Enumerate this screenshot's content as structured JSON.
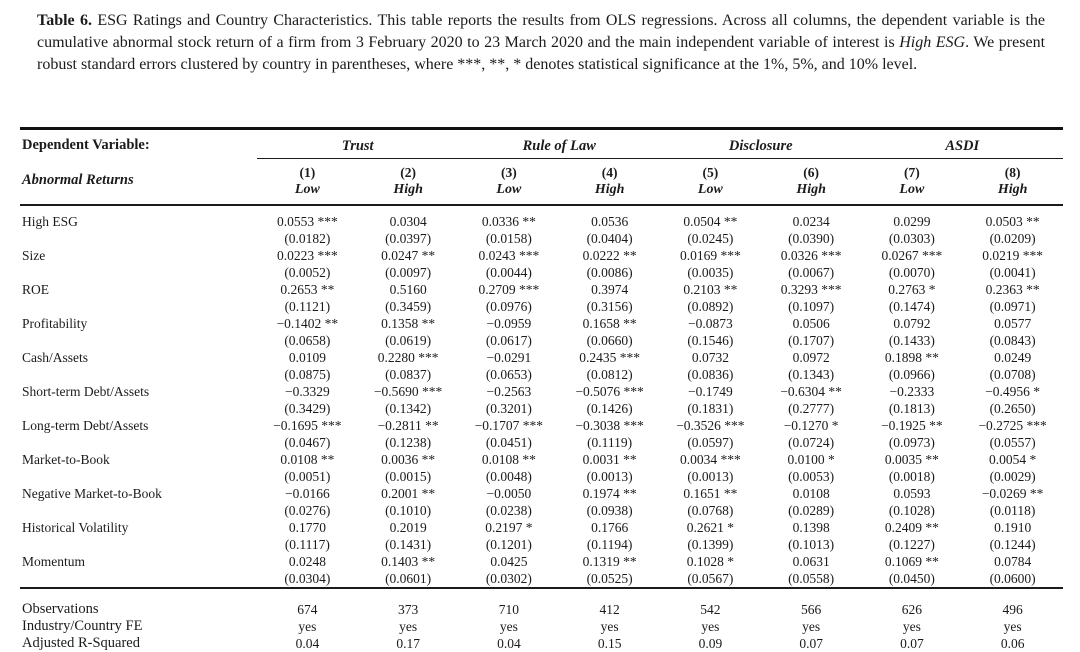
{
  "caption": {
    "label": "Table 6.",
    "text_before_italic": " ESG Ratings and Country Characteristics. This table reports the results from OLS regressions. Across all columns, the dependent variable is the cumulative abnormal stock return of a firm from 3 February 2020 to 23 March 2020 and the main independent variable of interest is ",
    "italic_phrase": "High ESG",
    "text_after_italic": ". We present robust standard errors clustered by country in parentheses, where ***, **, * denotes statistical significance at the 1%, 5%, and 10% level."
  },
  "table": {
    "header": {
      "dependent_variable_label": "Dependent Variable:",
      "abnormal_returns_label": "Abnormal Returns",
      "groups": [
        {
          "label": "Trust",
          "span": 2
        },
        {
          "label": "Rule of Law",
          "span": 2
        },
        {
          "label": "Disclosure",
          "span": 2
        },
        {
          "label": "ASDI",
          "span": 2
        }
      ],
      "column_numbers": [
        "(1)",
        "(2)",
        "(3)",
        "(4)",
        "(5)",
        "(6)",
        "(7)",
        "(8)"
      ],
      "column_types": [
        "Low",
        "High",
        "Low",
        "High",
        "Low",
        "High",
        "Low",
        "High"
      ]
    },
    "rows": [
      {
        "variable": "High ESG",
        "coef": [
          "0.0553 ***",
          "0.0304",
          "0.0336 **",
          "0.0536",
          "0.0504 **",
          "0.0234",
          "0.0299",
          "0.0503 **"
        ],
        "se": [
          "(0.0182)",
          "(0.0397)",
          "(0.0158)",
          "(0.0404)",
          "(0.0245)",
          "(0.0390)",
          "(0.0303)",
          "(0.0209)"
        ]
      },
      {
        "variable": "Size",
        "coef": [
          "0.0223 ***",
          "0.0247 **",
          "0.0243 ***",
          "0.0222 **",
          "0.0169 ***",
          "0.0326 ***",
          "0.0267 ***",
          "0.0219 ***"
        ],
        "se": [
          "(0.0052)",
          "(0.0097)",
          "(0.0044)",
          "(0.0086)",
          "(0.0035)",
          "(0.0067)",
          "(0.0070)",
          "(0.0041)"
        ]
      },
      {
        "variable": "ROE",
        "coef": [
          "0.2653 **",
          "0.5160",
          "0.2709 ***",
          "0.3974",
          "0.2103 **",
          "0.3293 ***",
          "0.2763 *",
          "0.2363 **"
        ],
        "se": [
          "(0.1121)",
          "(0.3459)",
          "(0.0976)",
          "(0.3156)",
          "(0.0892)",
          "(0.1097)",
          "(0.1474)",
          "(0.0971)"
        ]
      },
      {
        "variable": "Profitability",
        "coef": [
          "−0.1402 **",
          "0.1358 **",
          "−0.0959",
          "0.1658 **",
          "−0.0873",
          "0.0506",
          "0.0792",
          "0.0577"
        ],
        "se": [
          "(0.0658)",
          "(0.0619)",
          "(0.0617)",
          "(0.0660)",
          "(0.1546)",
          "(0.1707)",
          "(0.1433)",
          "(0.0843)"
        ]
      },
      {
        "variable": "Cash/Assets",
        "coef": [
          "0.0109",
          "0.2280 ***",
          "−0.0291",
          "0.2435 ***",
          "0.0732",
          "0.0972",
          "0.1898 **",
          "0.0249"
        ],
        "se": [
          "(0.0875)",
          "(0.0837)",
          "(0.0653)",
          "(0.0812)",
          "(0.0836)",
          "(0.1343)",
          "(0.0966)",
          "(0.0708)"
        ]
      },
      {
        "variable": "Short-term Debt/Assets",
        "coef": [
          "−0.3329",
          "−0.5690 ***",
          "−0.2563",
          "−0.5076 ***",
          "−0.1749",
          "−0.6304 **",
          "−0.2333",
          "−0.4956 *"
        ],
        "se": [
          "(0.3429)",
          "(0.1342)",
          "(0.3201)",
          "(0.1426)",
          "(0.1831)",
          "(0.2777)",
          "(0.1813)",
          "(0.2650)"
        ]
      },
      {
        "variable": "Long-term Debt/Assets",
        "coef": [
          "−0.1695 ***",
          "−0.2811 **",
          "−0.1707 ***",
          "−0.3038 ***",
          "−0.3526 ***",
          "−0.1270 *",
          "−0.1925 **",
          "−0.2725 ***"
        ],
        "se": [
          "(0.0467)",
          "(0.1238)",
          "(0.0451)",
          "(0.1119)",
          "(0.0597)",
          "(0.0724)",
          "(0.0973)",
          "(0.0557)"
        ]
      },
      {
        "variable": "Market-to-Book",
        "coef": [
          "0.0108 **",
          "0.0036 **",
          "0.0108 **",
          "0.0031 **",
          "0.0034 ***",
          "0.0100 *",
          "0.0035 **",
          "0.0054 *"
        ],
        "se": [
          "(0.0051)",
          "(0.0015)",
          "(0.0048)",
          "(0.0013)",
          "(0.0013)",
          "(0.0053)",
          "(0.0018)",
          "(0.0029)"
        ]
      },
      {
        "variable": "Negative Market-to-Book",
        "coef": [
          "−0.0166",
          "0.2001 **",
          "−0.0050",
          "0.1974 **",
          "0.1651 **",
          "0.0108",
          "0.0593",
          "−0.0269 **"
        ],
        "se": [
          "(0.0276)",
          "(0.1010)",
          "(0.0238)",
          "(0.0938)",
          "(0.0768)",
          "(0.0289)",
          "(0.1028)",
          "(0.0118)"
        ]
      },
      {
        "variable": "Historical Volatility",
        "coef": [
          "0.1770",
          "0.2019",
          "0.2197 *",
          "0.1766",
          "0.2621 *",
          "0.1398",
          "0.2409 **",
          "0.1910"
        ],
        "se": [
          "(0.1117)",
          "(0.1431)",
          "(0.1201)",
          "(0.1194)",
          "(0.1399)",
          "(0.1013)",
          "(0.1227)",
          "(0.1244)"
        ]
      },
      {
        "variable": "Momentum",
        "coef": [
          "0.0248",
          "0.1403 **",
          "0.0425",
          "0.1319 **",
          "0.1028 *",
          "0.0631",
          "0.1069 **",
          "0.0784"
        ],
        "se": [
          "(0.0304)",
          "(0.0601)",
          "(0.0302)",
          "(0.0525)",
          "(0.0567)",
          "(0.0558)",
          "(0.0450)",
          "(0.0600)"
        ]
      }
    ],
    "stats": [
      {
        "label": "Observations",
        "values": [
          "674",
          "373",
          "710",
          "412",
          "542",
          "566",
          "626",
          "496"
        ]
      },
      {
        "label": "Industry/Country FE",
        "values": [
          "yes",
          "yes",
          "yes",
          "yes",
          "yes",
          "yes",
          "yes",
          "yes"
        ]
      },
      {
        "label": "Adjusted R-Squared",
        "values": [
          "0.04",
          "0.17",
          "0.04",
          "0.15",
          "0.09",
          "0.07",
          "0.07",
          "0.06"
        ]
      }
    ]
  }
}
